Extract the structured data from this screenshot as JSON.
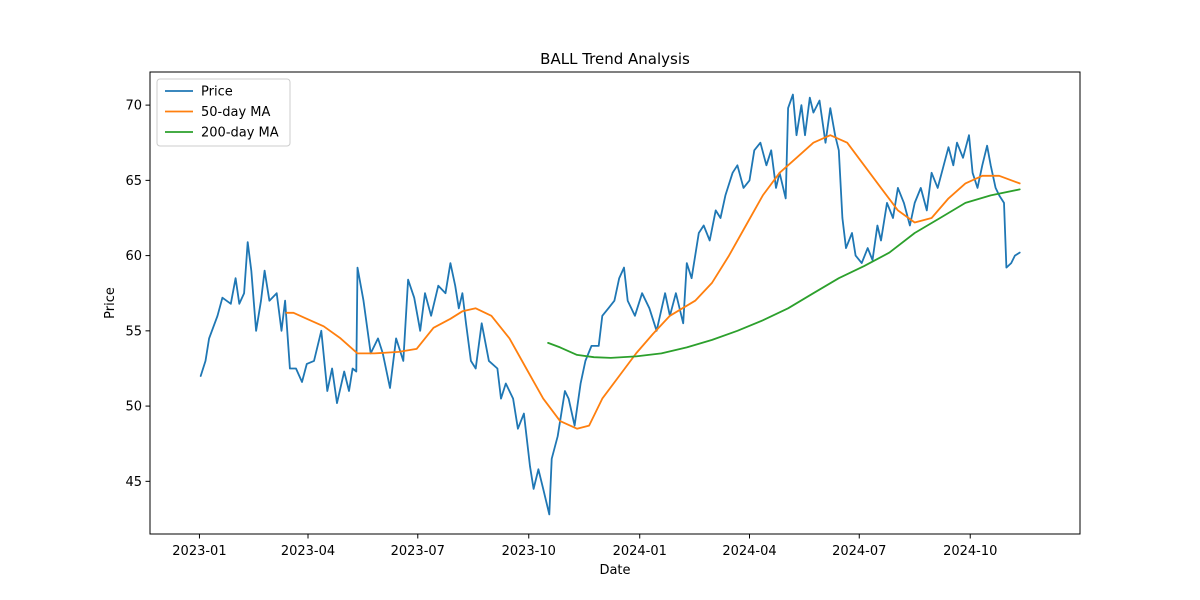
{
  "chart_data": {
    "type": "line",
    "title": "BALL Trend Analysis",
    "xlabel": "Date",
    "ylabel": "Price",
    "xlim": [
      "2022-11-21",
      "2024-12-31"
    ],
    "ylim": [
      41.5,
      72.2
    ],
    "x_ticks": [
      "2023-01-01",
      "2023-04-01",
      "2023-07-01",
      "2023-10-01",
      "2024-01-01",
      "2024-04-01",
      "2024-07-01",
      "2024-10-01"
    ],
    "x_tick_labels": [
      "2023-01",
      "2023-04",
      "2023-07",
      "2023-10",
      "2024-01",
      "2024-04",
      "2024-07",
      "2024-10"
    ],
    "y_ticks": [
      45,
      50,
      55,
      60,
      65,
      70
    ],
    "y_tick_labels": [
      "45",
      "50",
      "55",
      "60",
      "65",
      "70"
    ],
    "grid": false,
    "legend_position": "top-left",
    "series": [
      {
        "name": "Price",
        "color": "#1f77b4",
        "points": [
          [
            "2023-01-02",
            52.0
          ],
          [
            "2023-01-06",
            53.0
          ],
          [
            "2023-01-09",
            54.5
          ],
          [
            "2023-01-16",
            56.0
          ],
          [
            "2023-01-20",
            57.2
          ],
          [
            "2023-01-27",
            56.8
          ],
          [
            "2023-01-31",
            58.5
          ],
          [
            "2023-02-03",
            56.8
          ],
          [
            "2023-02-07",
            57.5
          ],
          [
            "2023-02-10",
            60.9
          ],
          [
            "2023-02-13",
            59.0
          ],
          [
            "2023-02-17",
            55.0
          ],
          [
            "2023-02-21",
            57.0
          ],
          [
            "2023-02-24",
            59.0
          ],
          [
            "2023-02-28",
            57.0
          ],
          [
            "2023-03-06",
            57.5
          ],
          [
            "2023-03-10",
            55.0
          ],
          [
            "2023-03-13",
            57.0
          ],
          [
            "2023-03-17",
            52.5
          ],
          [
            "2023-03-22",
            52.5
          ],
          [
            "2023-03-27",
            51.6
          ],
          [
            "2023-03-31",
            52.8
          ],
          [
            "2023-04-06",
            53.0
          ],
          [
            "2023-04-12",
            55.0
          ],
          [
            "2023-04-17",
            51.0
          ],
          [
            "2023-04-21",
            52.5
          ],
          [
            "2023-04-25",
            50.2
          ],
          [
            "2023-05-01",
            52.3
          ],
          [
            "2023-05-05",
            51.0
          ],
          [
            "2023-05-08",
            52.5
          ],
          [
            "2023-05-11",
            52.3
          ],
          [
            "2023-05-12",
            59.2
          ],
          [
            "2023-05-17",
            57.0
          ],
          [
            "2023-05-23",
            53.5
          ],
          [
            "2023-05-29",
            54.5
          ],
          [
            "2023-06-02",
            53.5
          ],
          [
            "2023-06-08",
            51.2
          ],
          [
            "2023-06-13",
            54.5
          ],
          [
            "2023-06-19",
            53.0
          ],
          [
            "2023-06-23",
            58.4
          ],
          [
            "2023-06-28",
            57.2
          ],
          [
            "2023-07-03",
            55.0
          ],
          [
            "2023-07-07",
            57.5
          ],
          [
            "2023-07-12",
            56.0
          ],
          [
            "2023-07-18",
            58.0
          ],
          [
            "2023-07-24",
            57.5
          ],
          [
            "2023-07-28",
            59.5
          ],
          [
            "2023-08-01",
            58.0
          ],
          [
            "2023-08-04",
            56.5
          ],
          [
            "2023-08-07",
            57.5
          ],
          [
            "2023-08-10",
            55.5
          ],
          [
            "2023-08-14",
            53.0
          ],
          [
            "2023-08-18",
            52.5
          ],
          [
            "2023-08-23",
            55.5
          ],
          [
            "2023-08-29",
            53.0
          ],
          [
            "2023-09-05",
            52.5
          ],
          [
            "2023-09-08",
            50.5
          ],
          [
            "2023-09-12",
            51.5
          ],
          [
            "2023-09-18",
            50.5
          ],
          [
            "2023-09-22",
            48.5
          ],
          [
            "2023-09-27",
            49.5
          ],
          [
            "2023-10-02",
            46.0
          ],
          [
            "2023-10-05",
            44.5
          ],
          [
            "2023-10-09",
            45.8
          ],
          [
            "2023-10-13",
            44.5
          ],
          [
            "2023-10-18",
            42.8
          ],
          [
            "2023-10-20",
            46.5
          ],
          [
            "2023-10-25",
            48.0
          ],
          [
            "2023-10-31",
            51.0
          ],
          [
            "2023-11-03",
            50.5
          ],
          [
            "2023-11-08",
            48.7
          ],
          [
            "2023-11-13",
            51.5
          ],
          [
            "2023-11-17",
            53.0
          ],
          [
            "2023-11-22",
            54.0
          ],
          [
            "2023-11-28",
            54.0
          ],
          [
            "2023-12-01",
            56.0
          ],
          [
            "2023-12-06",
            56.5
          ],
          [
            "2023-12-11",
            57.0
          ],
          [
            "2023-12-15",
            58.5
          ],
          [
            "2023-12-19",
            59.2
          ],
          [
            "2023-12-22",
            57.0
          ],
          [
            "2023-12-28",
            56.0
          ],
          [
            "2024-01-03",
            57.5
          ],
          [
            "2024-01-09",
            56.5
          ],
          [
            "2024-01-15",
            55.0
          ],
          [
            "2024-01-22",
            57.5
          ],
          [
            "2024-01-26",
            56.0
          ],
          [
            "2024-01-31",
            57.5
          ],
          [
            "2024-02-06",
            55.5
          ],
          [
            "2024-02-09",
            59.5
          ],
          [
            "2024-02-13",
            58.5
          ],
          [
            "2024-02-19",
            61.5
          ],
          [
            "2024-02-23",
            62.0
          ],
          [
            "2024-02-28",
            61.0
          ],
          [
            "2024-03-04",
            63.0
          ],
          [
            "2024-03-08",
            62.5
          ],
          [
            "2024-03-12",
            64.0
          ],
          [
            "2024-03-18",
            65.5
          ],
          [
            "2024-03-22",
            66.0
          ],
          [
            "2024-03-27",
            64.5
          ],
          [
            "2024-04-01",
            65.0
          ],
          [
            "2024-04-05",
            67.0
          ],
          [
            "2024-04-10",
            67.5
          ],
          [
            "2024-04-15",
            66.0
          ],
          [
            "2024-04-19",
            67.0
          ],
          [
            "2024-04-23",
            64.5
          ],
          [
            "2024-04-26",
            65.5
          ],
          [
            "2024-05-01",
            63.8
          ],
          [
            "2024-05-03",
            69.8
          ],
          [
            "2024-05-07",
            70.7
          ],
          [
            "2024-05-10",
            68.0
          ],
          [
            "2024-05-14",
            70.0
          ],
          [
            "2024-05-17",
            68.0
          ],
          [
            "2024-05-21",
            70.5
          ],
          [
            "2024-05-24",
            69.5
          ],
          [
            "2024-05-29",
            70.3
          ],
          [
            "2024-06-03",
            67.5
          ],
          [
            "2024-06-07",
            69.8
          ],
          [
            "2024-06-11",
            68.0
          ],
          [
            "2024-06-14",
            67.0
          ],
          [
            "2024-06-17",
            62.5
          ],
          [
            "2024-06-20",
            60.5
          ],
          [
            "2024-06-25",
            61.5
          ],
          [
            "2024-06-28",
            60.0
          ],
          [
            "2024-07-03",
            59.5
          ],
          [
            "2024-07-08",
            60.5
          ],
          [
            "2024-07-12",
            59.7
          ],
          [
            "2024-07-16",
            62.0
          ],
          [
            "2024-07-19",
            61.0
          ],
          [
            "2024-07-24",
            63.5
          ],
          [
            "2024-07-29",
            62.5
          ],
          [
            "2024-08-02",
            64.5
          ],
          [
            "2024-08-07",
            63.5
          ],
          [
            "2024-08-12",
            62.0
          ],
          [
            "2024-08-16",
            63.5
          ],
          [
            "2024-08-21",
            64.5
          ],
          [
            "2024-08-26",
            63.0
          ],
          [
            "2024-08-30",
            65.5
          ],
          [
            "2024-09-04",
            64.5
          ],
          [
            "2024-09-09",
            66.0
          ],
          [
            "2024-09-13",
            67.2
          ],
          [
            "2024-09-17",
            66.0
          ],
          [
            "2024-09-20",
            67.5
          ],
          [
            "2024-09-25",
            66.5
          ],
          [
            "2024-09-30",
            68.0
          ],
          [
            "2024-10-03",
            65.5
          ],
          [
            "2024-10-07",
            64.5
          ],
          [
            "2024-10-11",
            66.0
          ],
          [
            "2024-10-15",
            67.3
          ],
          [
            "2024-10-18",
            66.0
          ],
          [
            "2024-10-22",
            64.5
          ],
          [
            "2024-10-25",
            64.0
          ],
          [
            "2024-10-29",
            63.5
          ],
          [
            "2024-10-31",
            59.2
          ],
          [
            "2024-11-04",
            59.5
          ],
          [
            "2024-11-07",
            60.0
          ],
          [
            "2024-11-11",
            60.2
          ]
        ]
      },
      {
        "name": "50-day MA",
        "color": "#ff7f0e",
        "points": [
          [
            "2023-03-14",
            56.2
          ],
          [
            "2023-03-20",
            56.2
          ],
          [
            "2023-03-31",
            55.8
          ],
          [
            "2023-04-14",
            55.3
          ],
          [
            "2023-04-28",
            54.5
          ],
          [
            "2023-05-12",
            53.5
          ],
          [
            "2023-05-26",
            53.5
          ],
          [
            "2023-06-15",
            53.6
          ],
          [
            "2023-06-30",
            53.8
          ],
          [
            "2023-07-14",
            55.2
          ],
          [
            "2023-07-28",
            55.8
          ],
          [
            "2023-08-07",
            56.3
          ],
          [
            "2023-08-18",
            56.5
          ],
          [
            "2023-08-31",
            56.0
          ],
          [
            "2023-09-15",
            54.5
          ],
          [
            "2023-09-29",
            52.5
          ],
          [
            "2023-10-13",
            50.5
          ],
          [
            "2023-10-27",
            49.0
          ],
          [
            "2023-11-10",
            48.5
          ],
          [
            "2023-11-20",
            48.7
          ],
          [
            "2023-12-01",
            50.5
          ],
          [
            "2023-12-15",
            52.0
          ],
          [
            "2023-12-29",
            53.5
          ],
          [
            "2024-01-12",
            54.8
          ],
          [
            "2024-01-26",
            56.0
          ],
          [
            "2024-02-16",
            57.0
          ],
          [
            "2024-03-01",
            58.2
          ],
          [
            "2024-03-15",
            60.0
          ],
          [
            "2024-03-29",
            62.0
          ],
          [
            "2024-04-12",
            64.0
          ],
          [
            "2024-04-26",
            65.5
          ],
          [
            "2024-05-10",
            66.5
          ],
          [
            "2024-05-24",
            67.5
          ],
          [
            "2024-06-07",
            68.0
          ],
          [
            "2024-06-21",
            67.5
          ],
          [
            "2024-07-05",
            66.0
          ],
          [
            "2024-07-19",
            64.5
          ],
          [
            "2024-08-02",
            63.0
          ],
          [
            "2024-08-16",
            62.2
          ],
          [
            "2024-08-30",
            62.5
          ],
          [
            "2024-09-13",
            63.8
          ],
          [
            "2024-09-27",
            64.8
          ],
          [
            "2024-10-11",
            65.3
          ],
          [
            "2024-10-25",
            65.3
          ],
          [
            "2024-11-11",
            64.8
          ]
        ]
      },
      {
        "name": "200-day MA",
        "color": "#2ca02c",
        "points": [
          [
            "2023-10-17",
            54.2
          ],
          [
            "2023-10-27",
            53.9
          ],
          [
            "2023-11-10",
            53.4
          ],
          [
            "2023-11-24",
            53.25
          ],
          [
            "2023-12-08",
            53.2
          ],
          [
            "2023-12-29",
            53.3
          ],
          [
            "2024-01-19",
            53.5
          ],
          [
            "2024-02-09",
            53.9
          ],
          [
            "2024-03-01",
            54.4
          ],
          [
            "2024-03-22",
            55.0
          ],
          [
            "2024-04-12",
            55.7
          ],
          [
            "2024-05-03",
            56.5
          ],
          [
            "2024-05-24",
            57.5
          ],
          [
            "2024-06-14",
            58.5
          ],
          [
            "2024-07-05",
            59.3
          ],
          [
            "2024-07-26",
            60.2
          ],
          [
            "2024-08-16",
            61.5
          ],
          [
            "2024-09-06",
            62.5
          ],
          [
            "2024-09-27",
            63.5
          ],
          [
            "2024-10-18",
            64.0
          ],
          [
            "2024-11-11",
            64.4
          ]
        ]
      }
    ]
  }
}
